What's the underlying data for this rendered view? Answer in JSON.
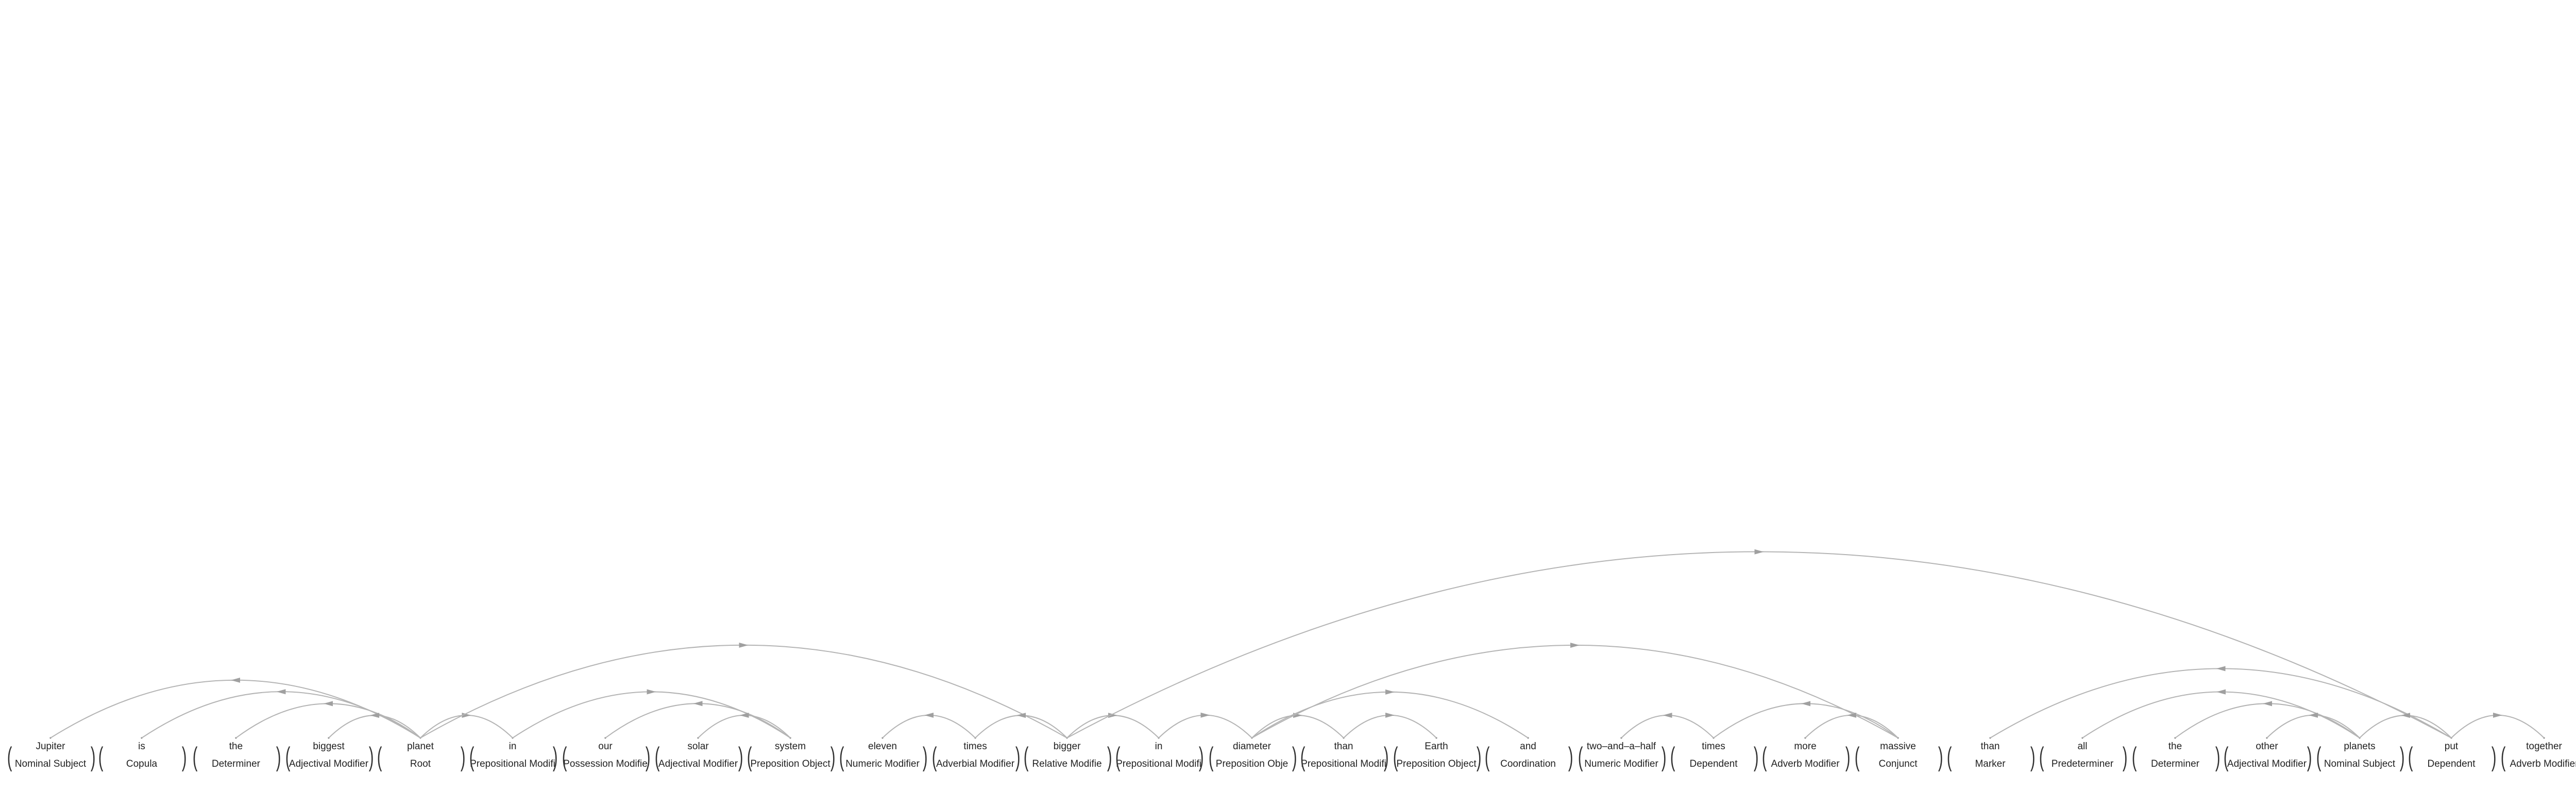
{
  "tokens": [
    {
      "word": "Jupiter",
      "rel": "Nominal Subject"
    },
    {
      "word": "is",
      "rel": "Copula"
    },
    {
      "word": "the",
      "rel": "Determiner"
    },
    {
      "word": "biggest",
      "rel": "Adjectival Modifier"
    },
    {
      "word": "planet",
      "rel": "Root"
    },
    {
      "word": "in",
      "rel": "Prepositional Modifi"
    },
    {
      "word": "our",
      "rel": "Possession Modifie"
    },
    {
      "word": "solar",
      "rel": "Adjectival Modifier"
    },
    {
      "word": "system",
      "rel": "Preposition Object"
    },
    {
      "word": "eleven",
      "rel": "Numeric Modifier"
    },
    {
      "word": "times",
      "rel": "Adverbial Modifier"
    },
    {
      "word": "bigger",
      "rel": "Relative Modifie"
    },
    {
      "word": "in",
      "rel": "Prepositional Modifi"
    },
    {
      "word": "diameter",
      "rel": "Preposition Obje"
    },
    {
      "word": "than",
      "rel": "Prepositional Modifi"
    },
    {
      "word": "Earth",
      "rel": "Preposition Object"
    },
    {
      "word": "and",
      "rel": "Coordination"
    },
    {
      "word": "two–and–a–half",
      "rel": "Numeric Modifier"
    },
    {
      "word": "times",
      "rel": "Dependent"
    },
    {
      "word": "more",
      "rel": "Adverb Modifier"
    },
    {
      "word": "massive",
      "rel": "Conjunct"
    },
    {
      "word": "than",
      "rel": "Marker"
    },
    {
      "word": "all",
      "rel": "Predeterminer"
    },
    {
      "word": "the",
      "rel": "Determiner"
    },
    {
      "word": "other",
      "rel": "Adjectival Modifier"
    },
    {
      "word": "planets",
      "rel": "Nominal Subject"
    },
    {
      "word": "put",
      "rel": "Dependent"
    },
    {
      "word": "together",
      "rel": "Adverb Modifier"
    }
  ],
  "arcs": [
    {
      "head": 4,
      "dep": 0
    },
    {
      "head": 4,
      "dep": 1
    },
    {
      "head": 4,
      "dep": 2
    },
    {
      "head": 4,
      "dep": 3
    },
    {
      "head": 4,
      "dep": 5
    },
    {
      "head": 4,
      "dep": 11
    },
    {
      "head": 5,
      "dep": 8
    },
    {
      "head": 8,
      "dep": 6
    },
    {
      "head": 8,
      "dep": 7
    },
    {
      "head": 10,
      "dep": 9
    },
    {
      "head": 11,
      "dep": 10
    },
    {
      "head": 11,
      "dep": 12
    },
    {
      "head": 11,
      "dep": 26
    },
    {
      "head": 12,
      "dep": 13
    },
    {
      "head": 13,
      "dep": 14
    },
    {
      "head": 13,
      "dep": 16
    },
    {
      "head": 13,
      "dep": 20
    },
    {
      "head": 14,
      "dep": 15
    },
    {
      "head": 18,
      "dep": 17
    },
    {
      "head": 20,
      "dep": 18
    },
    {
      "head": 20,
      "dep": 19
    },
    {
      "head": 26,
      "dep": 21
    },
    {
      "head": 25,
      "dep": 22
    },
    {
      "head": 25,
      "dep": 23
    },
    {
      "head": 25,
      "dep": 24
    },
    {
      "head": 26,
      "dep": 25
    },
    {
      "head": 26,
      "dep": 27
    }
  ],
  "colors": {
    "arc": "#b4b4b4",
    "arrow": "#a0a0a0",
    "text": "#222222"
  }
}
